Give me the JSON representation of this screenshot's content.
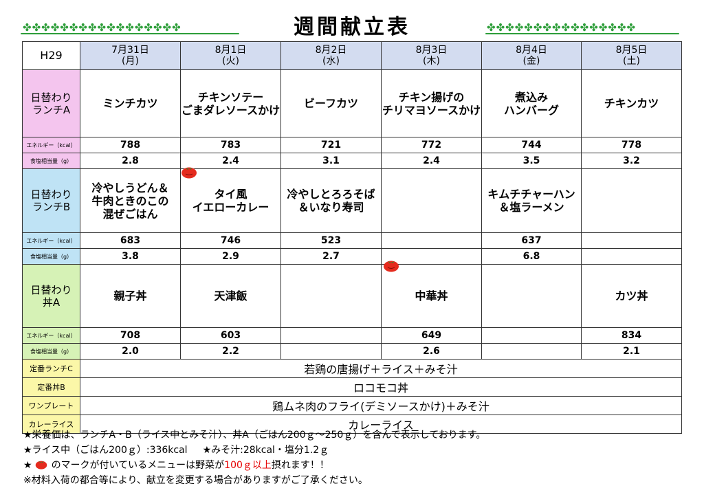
{
  "title": "週間献立表",
  "decoration_icon": "clover-icon",
  "accent_colors": {
    "lunchA": "#f4c5ee",
    "lunchB": "#bfe3f5",
    "donA": "#d6f2b6",
    "fixed": "#fbf7a8",
    "header": "#d3dcf0",
    "clover": "#2e9e3a",
    "tomato": "#e52b1e",
    "highlight": "#e60000"
  },
  "header": {
    "corner": "H29",
    "days": [
      {
        "date": "7月31日",
        "weekday": "(月)"
      },
      {
        "date": "8月1日",
        "weekday": "(火)"
      },
      {
        "date": "8月2日",
        "weekday": "(水)"
      },
      {
        "date": "8月3日",
        "weekday": "(木)"
      },
      {
        "date": "8月4日",
        "weekday": "(金)"
      },
      {
        "date": "8月5日",
        "weekday": "(土)"
      }
    ]
  },
  "energy_label": "エネルギー（kcal）",
  "salt_label": "食塩相当量（g）",
  "lunch_a": {
    "label_line1": "日替わり",
    "label_line2": "ランチA",
    "dishes": [
      {
        "line1": "ミンチカツ",
        "line2": "",
        "line3": ""
      },
      {
        "line1": "チキンソテー",
        "line2": "ごまダレソースかけ",
        "line3": ""
      },
      {
        "line1": "ビーフカツ",
        "line2": "",
        "line3": ""
      },
      {
        "line1": "チキン揚げの",
        "line2": "チリマヨソースかけ",
        "line3": ""
      },
      {
        "line1": "煮込み",
        "line2": "ハンバーグ",
        "line3": ""
      },
      {
        "line1": "チキンカツ",
        "line2": "",
        "line3": ""
      }
    ],
    "energy": [
      "788",
      "783",
      "721",
      "772",
      "744",
      "778"
    ],
    "salt": [
      "2.8",
      "2.4",
      "3.1",
      "2.4",
      "3.5",
      "3.2"
    ]
  },
  "lunch_b": {
    "label_line1": "日替わり",
    "label_line2": "ランチB",
    "dishes": [
      {
        "line1": "冷やしうどん＆",
        "line2": "牛肉ときのこの",
        "line3": "混ぜごはん"
      },
      {
        "line1": "タイ風",
        "line2": "イエローカレー",
        "line3": ""
      },
      {
        "line1": "冷やしとろろそば",
        "line2": "＆いなり寿司",
        "line3": ""
      },
      {
        "line1": "",
        "line2": "",
        "line3": ""
      },
      {
        "line1": "キムチチャーハン",
        "line2": "＆塩ラーメン",
        "line3": ""
      },
      {
        "line1": "",
        "line2": "",
        "line3": ""
      }
    ],
    "energy": [
      "683",
      "746",
      "523",
      "",
      "637",
      ""
    ],
    "salt": [
      "3.8",
      "2.9",
      "2.7",
      "",
      "6.8",
      ""
    ]
  },
  "don_a": {
    "label_line1": "日替わり",
    "label_line2": "丼A",
    "dishes": [
      {
        "line1": "親子丼",
        "line2": "",
        "line3": ""
      },
      {
        "line1": "天津飯",
        "line2": "",
        "line3": ""
      },
      {
        "line1": "",
        "line2": "",
        "line3": ""
      },
      {
        "line1": "中華丼",
        "line2": "",
        "line3": ""
      },
      {
        "line1": "",
        "line2": "",
        "line3": ""
      },
      {
        "line1": "カツ丼",
        "line2": "",
        "line3": ""
      }
    ],
    "energy": [
      "708",
      "603",
      "",
      "649",
      "",
      "834"
    ],
    "salt": [
      "2.0",
      "2.2",
      "",
      "2.6",
      "",
      "2.1"
    ]
  },
  "fixed_menus": [
    {
      "label": "定番ランチC",
      "value": "若鶏の唐揚げ＋ライス＋みそ汁"
    },
    {
      "label": "定番丼B",
      "value": "ロコモコ丼"
    },
    {
      "label": "ワンプレート",
      "value": "鶏ムネ肉のフライ(デミソースかけ)＋みそ汁"
    },
    {
      "label": "カレーライス",
      "value": "カレーライス"
    }
  ],
  "notes": {
    "line1": "★栄養価は、ランチA・B（ライス中とみそ汁）、丼A（ごはん200ｇ～250ｇ）を含んで表示しております。",
    "line2a": "★ライス中（ごはん200ｇ）:336kcal",
    "line2b": "★みそ汁:28kcal・塩分1.2ｇ",
    "line3_star": "★",
    "line3a": "のマークが付いているメニューは野菜が",
    "line3_highlight": "100ｇ以上",
    "line3b": "摂れます！！",
    "line4": "※材料入荷の都合等により、献立を変更する場合がありますがご了承ください。"
  }
}
